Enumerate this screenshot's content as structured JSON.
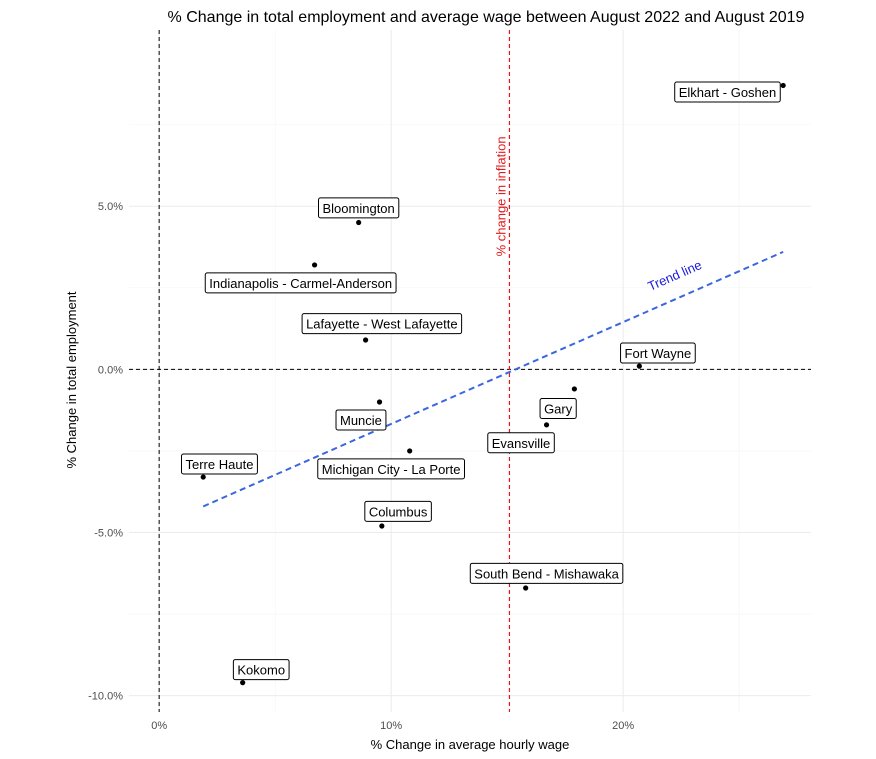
{
  "chart_data": {
    "type": "scatter",
    "title": "% Change in total employment and average wage between August 2022 and August 2019",
    "xlabel": "% Change in average hourly wage",
    "ylabel": "% Change in total employment",
    "xlim": [
      -1.3,
      28.1
    ],
    "ylim": [
      -10.5,
      10.4
    ],
    "x_ticks": [
      {
        "value": 0,
        "label": "0%"
      },
      {
        "value": 10,
        "label": "10%"
      },
      {
        "value": 20,
        "label": "20%"
      }
    ],
    "y_ticks": [
      {
        "value": -10,
        "label": "-10.0%"
      },
      {
        "value": -5,
        "label": "-5.0%"
      },
      {
        "value": 0,
        "label": "0.0%"
      },
      {
        "value": 5,
        "label": "5.0%"
      }
    ],
    "grid": true,
    "points": [
      {
        "name": "Elkhart - Goshen",
        "x": 26.9,
        "y": 8.7,
        "label_x": 24.5,
        "label_y": 8.5
      },
      {
        "name": "Bloomington",
        "x": 8.6,
        "y": 4.5,
        "label_x": 8.6,
        "label_y": 4.95
      },
      {
        "name": "Indianapolis - Carmel-Anderson",
        "x": 6.7,
        "y": 3.2,
        "label_x": 6.1,
        "label_y": 2.65
      },
      {
        "name": "Lafayette - West Lafayette",
        "x": 8.9,
        "y": 0.9,
        "label_x": 9.6,
        "label_y": 1.4
      },
      {
        "name": "Fort Wayne",
        "x": 20.7,
        "y": 0.1,
        "label_x": 21.5,
        "label_y": 0.5
      },
      {
        "name": "Gary",
        "x": 17.9,
        "y": -0.6,
        "label_x": 17.2,
        "label_y": -1.2
      },
      {
        "name": "Muncie",
        "x": 9.5,
        "y": -1.0,
        "label_x": 8.7,
        "label_y": -1.55
      },
      {
        "name": "Evansville",
        "x": 16.7,
        "y": -1.7,
        "label_x": 15.6,
        "label_y": -2.25
      },
      {
        "name": "Michigan City - La Porte",
        "x": 10.8,
        "y": -2.5,
        "label_x": 10.0,
        "label_y": -3.05
      },
      {
        "name": "Terre Haute",
        "x": 1.9,
        "y": -3.3,
        "label_x": 2.6,
        "label_y": -2.9
      },
      {
        "name": "Columbus",
        "x": 9.6,
        "y": -4.8,
        "label_x": 10.3,
        "label_y": -4.35
      },
      {
        "name": "South Bend - Mishawaka",
        "x": 15.8,
        "y": -6.7,
        "label_x": 16.7,
        "label_y": -6.25
      },
      {
        "name": "Kokomo",
        "x": 3.6,
        "y": -9.6,
        "label_x": 4.4,
        "label_y": -9.2
      }
    ],
    "reference_lines": {
      "vertical_zero": 0,
      "horizontal_zero": 0,
      "inflation_x": 15.1
    },
    "trend_line": {
      "x": [
        1.9,
        26.9
      ],
      "y": [
        -4.2,
        3.6
      ]
    },
    "annotations": {
      "inflation": {
        "text": "% change in inflation",
        "x": 15.1,
        "y": 5.3
      },
      "trend": {
        "text": "Trend line",
        "x": 22.3,
        "y": 2.75
      }
    },
    "colors": {
      "inflation": "#e31a1c",
      "trend": "#3a66e0",
      "trend_text": "#1a1ad9"
    }
  }
}
